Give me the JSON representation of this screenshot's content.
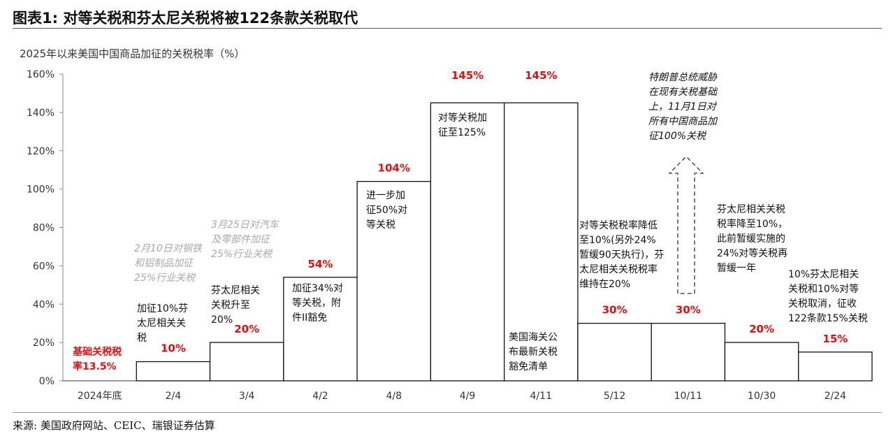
{
  "figure_title": "图表1: 对等关税和芬太尼关税将被122条款关税取代",
  "source": "来源: 美国政府网站、CEIC、瑞银证券估算",
  "chart_data": {
    "type": "bar",
    "ylabel": "2025年以来美国中国商品加征的关税税率（%）",
    "ylim": [
      0,
      160
    ],
    "ytick_values": [
      0,
      20,
      40,
      60,
      80,
      100,
      120,
      140,
      160
    ],
    "ytick_labels": [
      "0%",
      "20%",
      "40%",
      "60%",
      "80%",
      "100%",
      "120%",
      "140%",
      "160%"
    ],
    "categories": [
      "2024年底",
      "2/4",
      "3/4",
      "4/2",
      "4/8",
      "4/9",
      "4/11",
      "5/12",
      "10/11",
      "10/30",
      "2/24"
    ],
    "values": [
      0,
      10,
      20,
      54,
      104,
      145,
      145,
      30,
      30,
      20,
      15
    ],
    "value_labels": [
      "",
      "10%",
      "20%",
      "54%",
      "104%",
      "145%",
      "145%",
      "30%",
      "30%",
      "20%",
      "15%"
    ],
    "grid": false,
    "annotations": [
      {
        "id": "base-rate",
        "style": "red",
        "lines": [
          "基础关税税",
          "率13.5%"
        ]
      },
      {
        "id": "feb4",
        "style": "normal",
        "lines": [
          "加征10%芬",
          "太尼相关关",
          "税"
        ]
      },
      {
        "id": "feb10-steel",
        "style": "gray",
        "lines": [
          "2月10日对钢铁",
          "和铝制品加征",
          "25%行业关税"
        ]
      },
      {
        "id": "mar4",
        "style": "normal",
        "lines": [
          "芬太尼相关",
          "关税升至",
          "20%"
        ]
      },
      {
        "id": "mar25-auto",
        "style": "gray",
        "lines": [
          "3月25日对汽车",
          "及零部件加征",
          "25%行业关税"
        ]
      },
      {
        "id": "apr2",
        "style": "normal",
        "lines": [
          "加征34%对",
          "等关税，附",
          "件II豁免"
        ]
      },
      {
        "id": "apr8",
        "style": "normal",
        "lines": [
          "进一步加",
          "征50%对",
          "等关税"
        ]
      },
      {
        "id": "apr9",
        "style": "normal",
        "lines": [
          "对等关税加",
          "征至125%"
        ]
      },
      {
        "id": "apr11",
        "style": "normal",
        "lines": [
          "美国海关公",
          "布最新关税",
          "豁免清单"
        ]
      },
      {
        "id": "may12",
        "style": "normal",
        "lines": [
          "对等关税税率降低",
          "至10%(另外24%",
          "暂缓90天执行)，芬",
          "太尼相关关税税率",
          "维持在20%"
        ]
      },
      {
        "id": "oct11-threat",
        "style": "italic",
        "lines": [
          "特朗普总统威胁",
          "在现有关税基础",
          "上，11月1日对",
          "所有中国商品加",
          "征100%关税"
        ]
      },
      {
        "id": "oct30",
        "style": "normal",
        "lines": [
          "芬太尼相关关税",
          "税率降至10%，",
          "此前暂缓实施的",
          "24%对等关税再",
          "暂缓一年"
        ]
      },
      {
        "id": "feb24",
        "style": "normal",
        "lines": [
          "10%芬太尼相关",
          "关税和10%对等",
          "关税取消，征收",
          "122条款15%关税"
        ]
      }
    ]
  }
}
